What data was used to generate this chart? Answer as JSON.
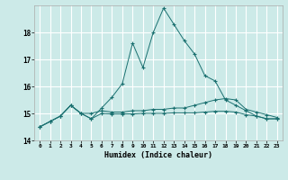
{
  "xlabel": "Humidex (Indice chaleur)",
  "background_color": "#cceae8",
  "grid_color": "#ffffff",
  "line_color": "#1a7070",
  "xlim": [
    -0.5,
    23.5
  ],
  "ylim": [
    14.0,
    19.0
  ],
  "yticks": [
    14,
    15,
    16,
    17,
    18
  ],
  "xticks": [
    0,
    1,
    2,
    3,
    4,
    5,
    6,
    7,
    8,
    9,
    10,
    11,
    12,
    13,
    14,
    15,
    16,
    17,
    18,
    19,
    20,
    21,
    22,
    23
  ],
  "series": [
    [
      14.5,
      14.7,
      14.9,
      15.3,
      15.0,
      14.8,
      15.2,
      15.6,
      16.1,
      17.6,
      16.7,
      18.0,
      18.9,
      18.3,
      17.7,
      17.2,
      16.4,
      16.2,
      15.5,
      15.3,
      15.1,
      14.9,
      14.8,
      14.8
    ],
    [
      14.5,
      14.7,
      14.9,
      15.3,
      15.0,
      15.0,
      15.1,
      15.05,
      15.05,
      15.1,
      15.1,
      15.15,
      15.15,
      15.2,
      15.2,
      15.3,
      15.4,
      15.5,
      15.55,
      15.5,
      15.15,
      15.05,
      14.95,
      14.85
    ],
    [
      14.5,
      14.7,
      14.9,
      15.3,
      15.0,
      14.8,
      15.0,
      14.98,
      14.98,
      14.98,
      15.0,
      15.0,
      15.0,
      15.02,
      15.02,
      15.02,
      15.05,
      15.08,
      15.08,
      15.05,
      14.95,
      14.9,
      14.8,
      14.8
    ]
  ]
}
